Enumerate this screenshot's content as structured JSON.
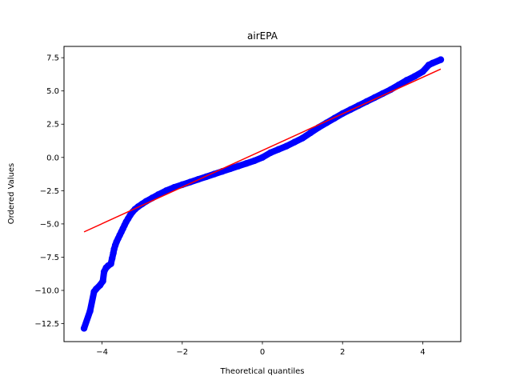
{
  "chart_data": {
    "type": "scatter",
    "title": "airEPA",
    "xlabel": "Theoretical quantiles",
    "ylabel": "Ordered Values",
    "xlim": [
      -4.95,
      4.95
    ],
    "ylim": [
      -13.85,
      8.35
    ],
    "xticks": [
      -4,
      -2,
      0,
      2,
      4
    ],
    "xtick_labels": [
      "−4",
      "−2",
      "0",
      "2",
      "4"
    ],
    "yticks": [
      -12.5,
      -10.0,
      -7.5,
      -5.0,
      -2.5,
      0.0,
      2.5,
      5.0,
      7.5
    ],
    "ytick_labels": [
      "−12.5",
      "−10.0",
      "−7.5",
      "−5.0",
      "−2.5",
      "0.0",
      "2.5",
      "5.0",
      "7.5"
    ],
    "grid": false,
    "points_color": "#0000ff",
    "fit_color": "#ff0000",
    "points": [
      [
        -4.45,
        -12.85
      ],
      [
        -4.3,
        -11.55
      ],
      [
        -4.2,
        -10.1
      ],
      [
        -4.15,
        -9.9
      ],
      [
        -4.05,
        -9.6
      ],
      [
        -3.98,
        -9.3
      ],
      [
        -3.95,
        -8.6
      ],
      [
        -3.9,
        -8.3
      ],
      [
        -3.85,
        -8.15
      ],
      [
        -3.78,
        -8.0
      ],
      [
        -3.75,
        -7.6
      ],
      [
        -3.72,
        -7.2
      ],
      [
        -3.7,
        -6.9
      ],
      [
        -3.67,
        -6.6
      ],
      [
        -3.64,
        -6.35
      ],
      [
        -3.6,
        -6.1
      ],
      [
        -3.56,
        -5.85
      ],
      [
        -3.52,
        -5.6
      ],
      [
        -3.48,
        -5.35
      ],
      [
        -3.44,
        -5.1
      ],
      [
        -3.4,
        -4.85
      ],
      [
        -3.35,
        -4.6
      ],
      [
        -3.3,
        -4.35
      ],
      [
        -3.24,
        -4.1
      ],
      [
        -3.18,
        -3.9
      ],
      [
        -3.1,
        -3.7
      ],
      [
        -3.0,
        -3.5
      ],
      [
        -2.9,
        -3.3
      ],
      [
        -2.75,
        -3.05
      ],
      [
        -2.6,
        -2.8
      ],
      [
        -2.4,
        -2.5
      ],
      [
        -2.2,
        -2.25
      ],
      [
        -2.0,
        -2.05
      ],
      [
        -1.8,
        -1.85
      ],
      [
        -1.6,
        -1.65
      ],
      [
        -1.4,
        -1.45
      ],
      [
        -1.2,
        -1.25
      ],
      [
        -1.0,
        -1.05
      ],
      [
        -0.8,
        -0.85
      ],
      [
        -0.6,
        -0.65
      ],
      [
        -0.4,
        -0.45
      ],
      [
        -0.2,
        -0.25
      ],
      [
        0.0,
        0.0
      ],
      [
        0.2,
        0.35
      ],
      [
        0.4,
        0.6
      ],
      [
        0.6,
        0.85
      ],
      [
        0.8,
        1.15
      ],
      [
        1.0,
        1.45
      ],
      [
        1.2,
        1.85
      ],
      [
        1.4,
        2.25
      ],
      [
        1.6,
        2.6
      ],
      [
        1.8,
        2.95
      ],
      [
        2.0,
        3.3
      ],
      [
        2.2,
        3.6
      ],
      [
        2.4,
        3.9
      ],
      [
        2.6,
        4.2
      ],
      [
        2.8,
        4.5
      ],
      [
        3.0,
        4.8
      ],
      [
        3.2,
        5.1
      ],
      [
        3.4,
        5.45
      ],
      [
        3.6,
        5.8
      ],
      [
        3.8,
        6.1
      ],
      [
        4.0,
        6.45
      ],
      [
        4.15,
        6.95
      ],
      [
        4.25,
        7.1
      ],
      [
        4.45,
        7.35
      ]
    ],
    "fit_line": {
      "x": [
        -4.45,
        4.45
      ],
      "y": [
        -5.6,
        6.65
      ]
    }
  }
}
